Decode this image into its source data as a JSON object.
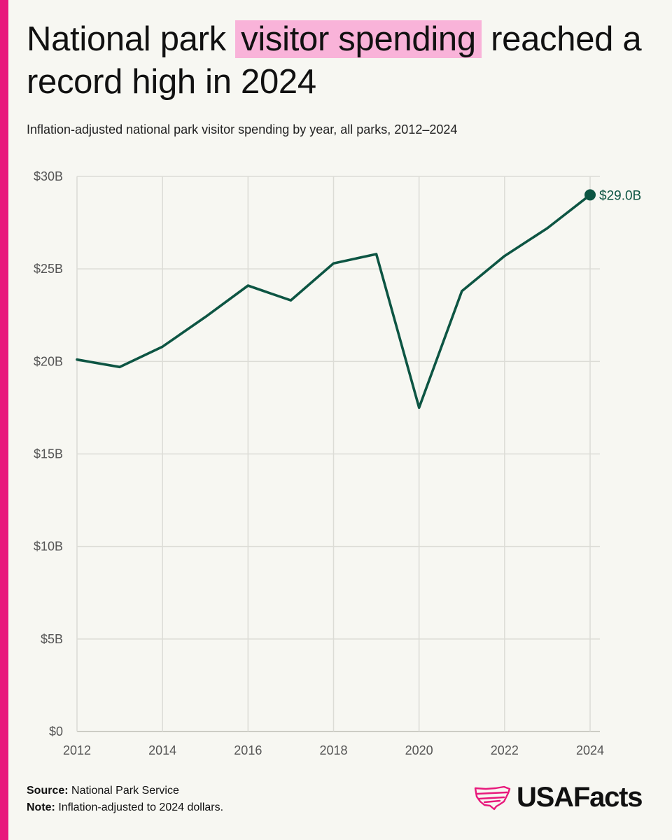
{
  "title": {
    "part1": "National park ",
    "highlight": "visitor spending",
    "part2": " reached a record high in 2024"
  },
  "subtitle": "Inflation-adjusted national park visitor spending by year, all parks, 2012–2024",
  "colors": {
    "accent": "#e8197c",
    "highlight": "#f9b3d9",
    "line": "#0d5543",
    "grid": "#dcdcd6",
    "background": "#f7f7f2"
  },
  "chart_data": {
    "type": "line",
    "title": "",
    "xlabel": "",
    "ylabel": "",
    "x": [
      2012,
      2013,
      2014,
      2015,
      2016,
      2017,
      2018,
      2019,
      2020,
      2021,
      2022,
      2023,
      2024
    ],
    "values": [
      20.1,
      19.7,
      20.8,
      22.4,
      24.1,
      23.3,
      25.3,
      25.8,
      17.5,
      23.8,
      25.7,
      27.2,
      29.0
    ],
    "ylim": [
      0,
      30
    ],
    "xlim": [
      2012,
      2024
    ],
    "y_ticks": [
      0,
      5,
      10,
      15,
      20,
      25,
      30
    ],
    "y_tick_labels": [
      "$0",
      "$5B",
      "$10B",
      "$15B",
      "$20B",
      "$25B",
      "$30B"
    ],
    "x_ticks": [
      2012,
      2014,
      2016,
      2018,
      2020,
      2022,
      2024
    ],
    "x_tick_labels": [
      "2012",
      "2014",
      "2016",
      "2018",
      "2020",
      "2022",
      "2024"
    ],
    "annotation": "$29.0B",
    "grid": true
  },
  "footer": {
    "source_label": "Source:",
    "source_text": " National Park Service",
    "note_label": "Note:",
    "note_text": " Inflation-adjusted to 2024 dollars."
  },
  "logo": {
    "text": "USAFacts",
    "icon": "usa-map-icon"
  }
}
